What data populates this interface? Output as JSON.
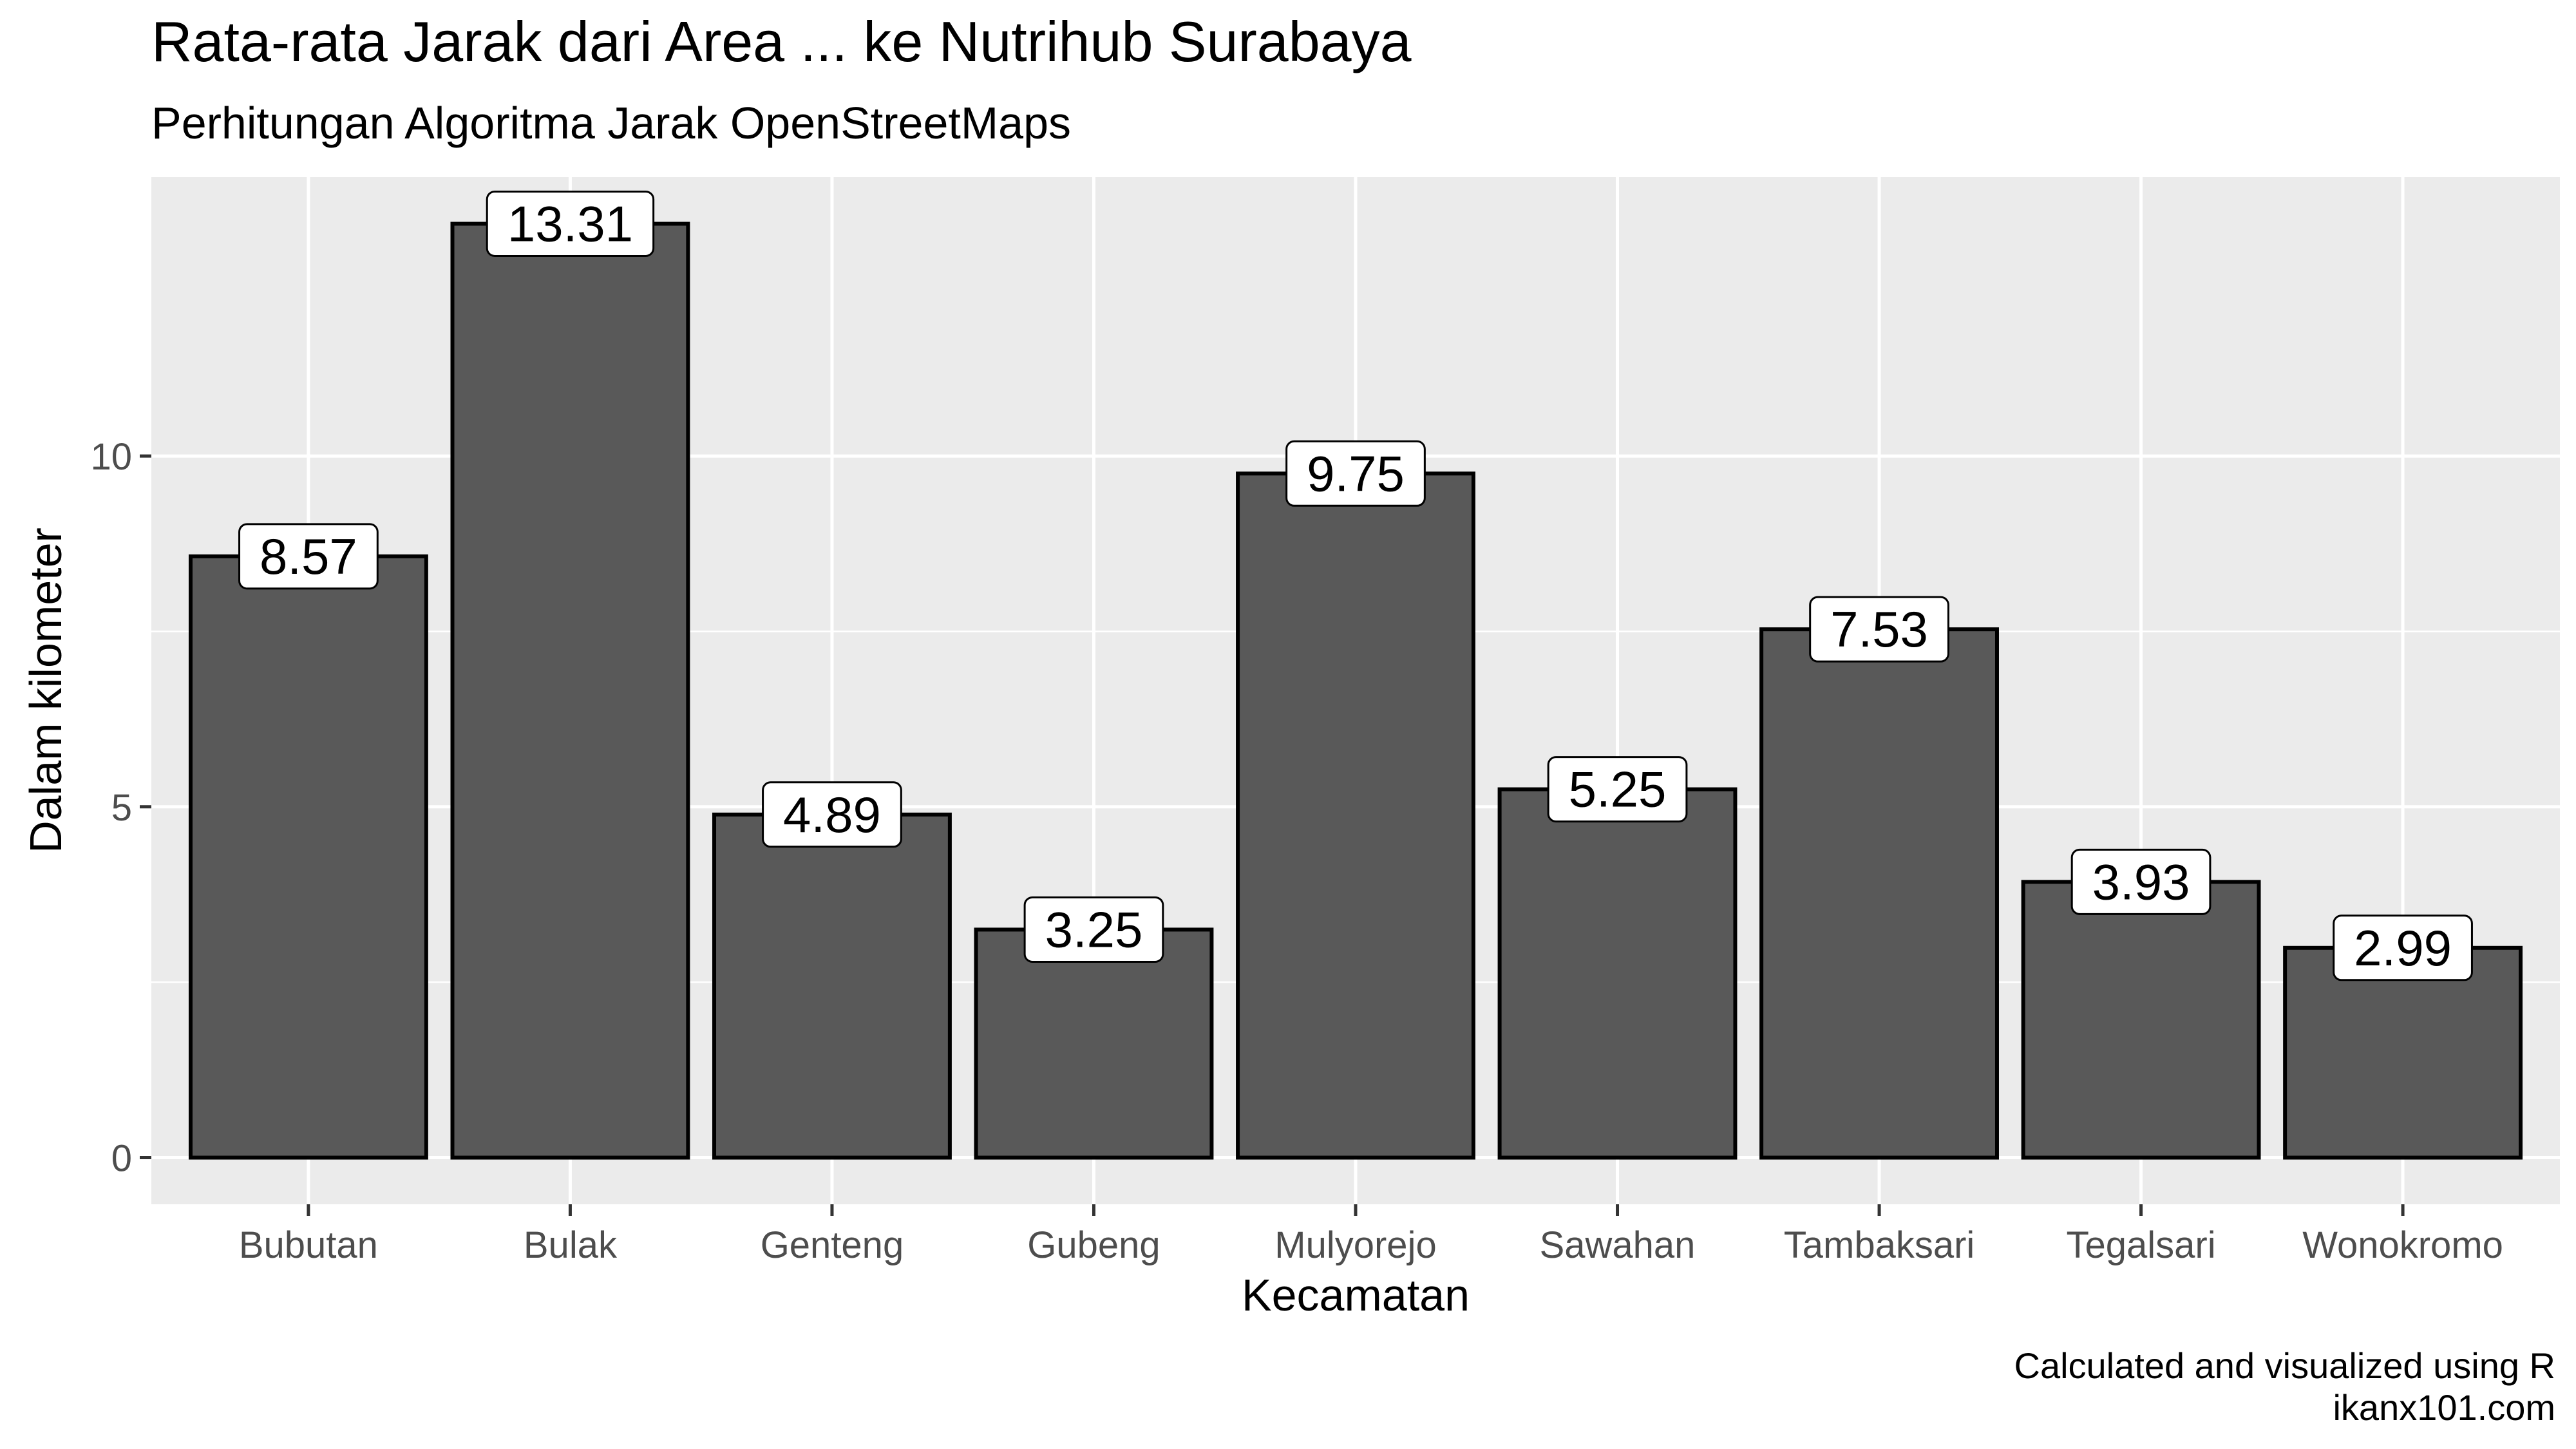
{
  "chart_data": {
    "type": "bar",
    "title": "Rata-rata Jarak dari Area ... ke Nutrihub Surabaya",
    "subtitle": "Perhitungan Algoritma Jarak OpenStreetMaps",
    "xlabel": "Kecamatan",
    "ylabel": "Dalam kilometer",
    "caption_lines": [
      "Calculated and visualized using R",
      "ikanx101.com"
    ],
    "categories": [
      "Bubutan",
      "Bulak",
      "Genteng",
      "Gubeng",
      "Mulyorejo",
      "Sawahan",
      "Tambaksari",
      "Tegalsari",
      "Wonokromo"
    ],
    "values": [
      8.57,
      13.31,
      4.89,
      3.25,
      9.75,
      5.25,
      7.53,
      3.93,
      2.99
    ],
    "data_labels": [
      "8.57",
      "13.31",
      "4.89",
      "3.25",
      "9.75",
      "5.25",
      "7.53",
      "3.93",
      "2.99"
    ],
    "ylim": [
      -0.665,
      13.975
    ],
    "y_ticks": [
      0,
      5,
      10
    ],
    "y_tick_labels": [
      "0",
      "5",
      "10"
    ],
    "grid": true,
    "legend": "none",
    "colors": {
      "panel_background": "#ebebeb",
      "grid": "#ffffff",
      "bar_fill": "#595959",
      "bar_outline": "#000000",
      "label_box": "#ffffff",
      "tick_text": "#4d4d4d"
    }
  }
}
